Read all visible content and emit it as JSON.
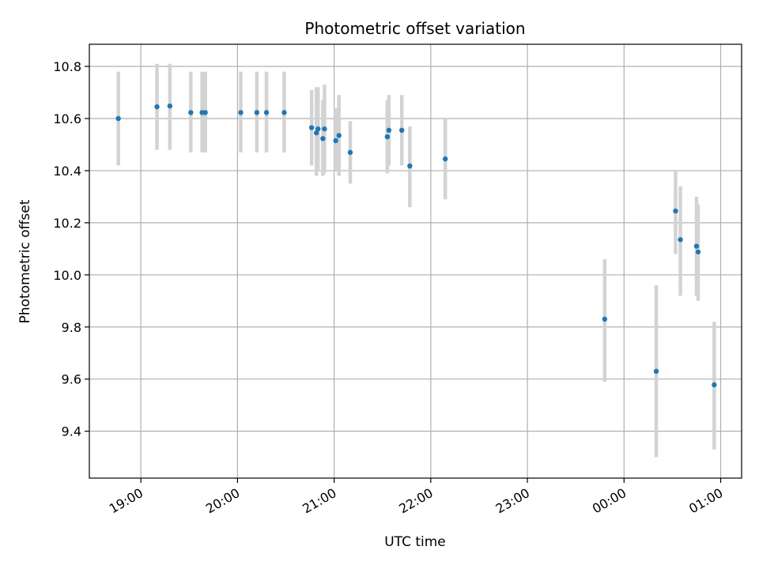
{
  "chart_data": {
    "type": "scatter",
    "title": "Photometric offset variation",
    "xlabel": "UTC time",
    "ylabel": "Photometric offset",
    "grid": true,
    "x_axis": {
      "unit": "UTC time",
      "range": [
        "18:28",
        "01:13"
      ],
      "tick_values": [
        "19:00",
        "20:00",
        "21:00",
        "22:00",
        "23:00",
        "00:00",
        "01:00"
      ],
      "tick_labels": [
        "19:00",
        "20:00",
        "21:00",
        "22:00",
        "23:00",
        "00:00",
        "01:00"
      ]
    },
    "y_axis": {
      "range": [
        9.22,
        10.885
      ],
      "ticks": [
        9.4,
        9.6,
        9.8,
        10.0,
        10.2,
        10.4,
        10.6,
        10.8
      ],
      "tick_labels": [
        "9.4",
        "9.6",
        "9.8",
        "10.0",
        "10.2",
        "10.4",
        "10.6",
        "10.8"
      ]
    },
    "series": [
      {
        "marker_color": "#1f77b4",
        "errorbar_color": "#d3d3d3",
        "points": [
          {
            "x": "18:46",
            "y": 10.6,
            "yerr_low": 10.42,
            "yerr_high": 10.78
          },
          {
            "x": "19:10",
            "y": 10.645,
            "yerr_low": 10.48,
            "yerr_high": 10.81
          },
          {
            "x": "19:18",
            "y": 10.648,
            "yerr_low": 10.48,
            "yerr_high": 10.81
          },
          {
            "x": "19:31",
            "y": 10.623,
            "yerr_low": 10.47,
            "yerr_high": 10.78
          },
          {
            "x": "19:38",
            "y": 10.623,
            "yerr_low": 10.47,
            "yerr_high": 10.78
          },
          {
            "x": "19:40",
            "y": 10.623,
            "yerr_low": 10.47,
            "yerr_high": 10.78
          },
          {
            "x": "20:02",
            "y": 10.623,
            "yerr_low": 10.47,
            "yerr_high": 10.78
          },
          {
            "x": "20:12",
            "y": 10.623,
            "yerr_low": 10.47,
            "yerr_high": 10.78
          },
          {
            "x": "20:18",
            "y": 10.623,
            "yerr_low": 10.47,
            "yerr_high": 10.78
          },
          {
            "x": "20:29",
            "y": 10.623,
            "yerr_low": 10.47,
            "yerr_high": 10.78
          },
          {
            "x": "20:46",
            "y": 10.565,
            "yerr_low": 10.42,
            "yerr_high": 10.71
          },
          {
            "x": "20:49",
            "y": 10.545,
            "yerr_low": 10.38,
            "yerr_high": 10.72
          },
          {
            "x": "20:50",
            "y": 10.56,
            "yerr_low": 10.4,
            "yerr_high": 10.72
          },
          {
            "x": "20:53",
            "y": 10.523,
            "yerr_low": 10.38,
            "yerr_high": 10.67
          },
          {
            "x": "20:54",
            "y": 10.56,
            "yerr_low": 10.39,
            "yerr_high": 10.73
          },
          {
            "x": "21:01",
            "y": 10.515,
            "yerr_low": 10.4,
            "yerr_high": 10.64
          },
          {
            "x": "21:03",
            "y": 10.535,
            "yerr_low": 10.38,
            "yerr_high": 10.69
          },
          {
            "x": "21:10",
            "y": 10.47,
            "yerr_low": 10.35,
            "yerr_high": 10.59
          },
          {
            "x": "21:33",
            "y": 10.53,
            "yerr_low": 10.39,
            "yerr_high": 10.67
          },
          {
            "x": "21:34",
            "y": 10.555,
            "yerr_low": 10.42,
            "yerr_high": 10.69
          },
          {
            "x": "21:42",
            "y": 10.555,
            "yerr_low": 10.42,
            "yerr_high": 10.69
          },
          {
            "x": "21:47",
            "y": 10.418,
            "yerr_low": 10.26,
            "yerr_high": 10.57
          },
          {
            "x": "22:09",
            "y": 10.445,
            "yerr_low": 10.29,
            "yerr_high": 10.6
          },
          {
            "x": "23:48",
            "y": 9.83,
            "yerr_low": 9.59,
            "yerr_high": 10.06
          },
          {
            "x": "00:20",
            "y": 9.63,
            "yerr_low": 9.3,
            "yerr_high": 9.96
          },
          {
            "x": "00:32",
            "y": 10.245,
            "yerr_low": 10.08,
            "yerr_high": 10.4
          },
          {
            "x": "00:35",
            "y": 10.135,
            "yerr_low": 9.92,
            "yerr_high": 10.34
          },
          {
            "x": "00:45",
            "y": 10.11,
            "yerr_low": 9.92,
            "yerr_high": 10.3
          },
          {
            "x": "00:46",
            "y": 10.088,
            "yerr_low": 9.9,
            "yerr_high": 10.27
          },
          {
            "x": "00:56",
            "y": 9.578,
            "yerr_low": 9.33,
            "yerr_high": 9.82
          }
        ]
      }
    ]
  }
}
